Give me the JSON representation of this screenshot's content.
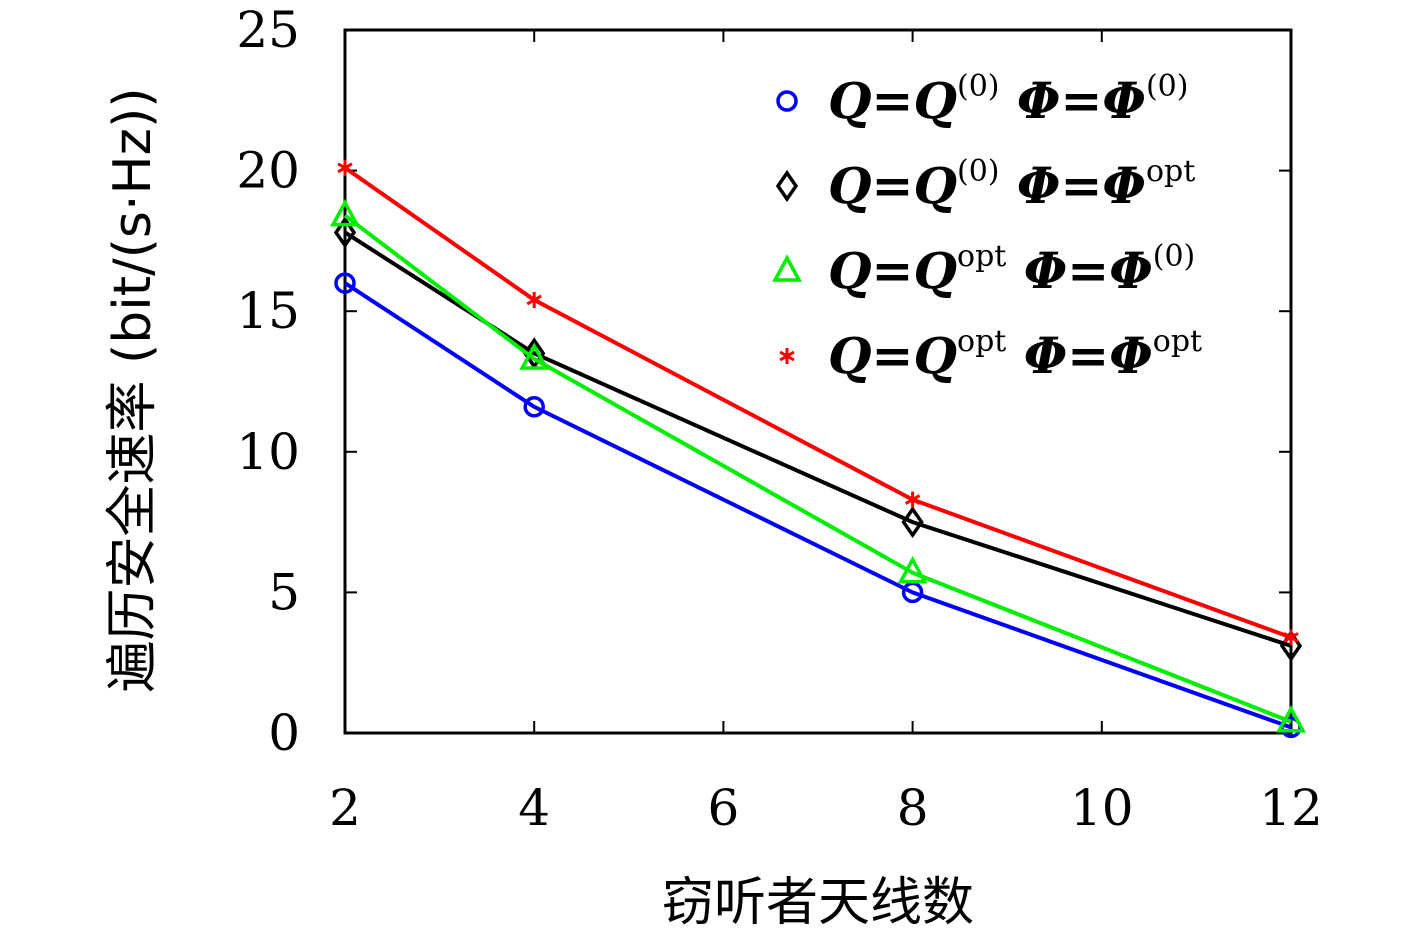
{
  "chart_data": {
    "type": "line",
    "title": "",
    "xlabel": "窃听者天线数",
    "ylabel": "遍历安全速率 (bit/(s·Hz))",
    "xlim": [
      2,
      12
    ],
    "ylim": [
      0,
      25
    ],
    "xticks": [
      "2",
      "4",
      "6",
      "8",
      "10",
      "12"
    ],
    "yticks": [
      "0",
      "5",
      "10",
      "15",
      "20",
      "25"
    ],
    "x": [
      2,
      4,
      8,
      12
    ],
    "grid": false,
    "legend_position": "top-right",
    "series": [
      {
        "name": "Q=Q(0) Φ=Φ(0)",
        "legend_parts": [
          {
            "t": "Q=Q"
          },
          {
            "s": "(0)"
          },
          {
            "t": " Φ=Φ"
          },
          {
            "s": "(0)"
          }
        ],
        "color": "#0000ff",
        "marker": "circle",
        "values": [
          16.0,
          11.6,
          5.0,
          0.2
        ]
      },
      {
        "name": "Q=Q(0) Φ=Φopt",
        "legend_parts": [
          {
            "t": "Q=Q"
          },
          {
            "s": "(0)"
          },
          {
            "t": " Φ=Φ"
          },
          {
            "s": "opt"
          }
        ],
        "color": "#000000",
        "marker": "diamond",
        "values": [
          17.8,
          13.5,
          7.5,
          3.1
        ]
      },
      {
        "name": "Q=Qopt Φ=Φ(0)",
        "legend_parts": [
          {
            "t": "Q=Q"
          },
          {
            "s": "opt"
          },
          {
            "t": " Φ=Φ"
          },
          {
            "s": "(0)"
          }
        ],
        "color": "#00ee00",
        "marker": "triangle",
        "values": [
          18.4,
          13.3,
          5.7,
          0.4
        ]
      },
      {
        "name": "Q=Qopt Φ=Φopt",
        "legend_parts": [
          {
            "t": "Q=Q"
          },
          {
            "s": "opt"
          },
          {
            "t": " Φ=Φ"
          },
          {
            "s": "opt"
          }
        ],
        "color": "#ff0000",
        "marker": "asterisk",
        "values": [
          20.1,
          15.4,
          8.3,
          3.4
        ]
      }
    ]
  }
}
